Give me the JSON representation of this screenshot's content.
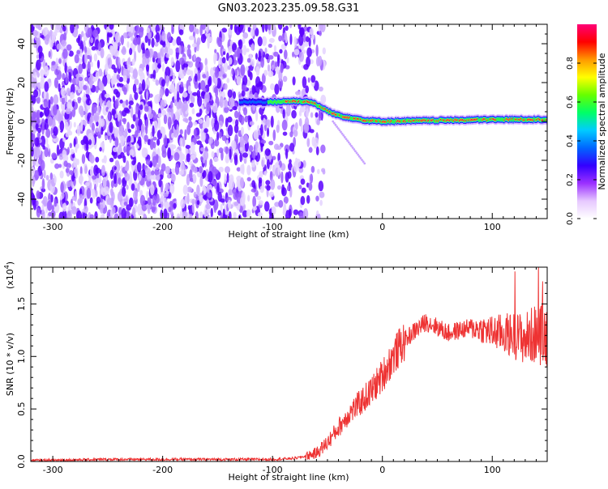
{
  "title": "GN03.2023.235.09.58.G31",
  "chart_data": [
    {
      "type": "heatmap",
      "xlabel": "Height of straight line (km)",
      "ylabel": "Frequency (Hz)",
      "xlim": [
        -320,
        150
      ],
      "ylim": [
        -50,
        50
      ],
      "x_ticks": [
        -300,
        -200,
        -100,
        0,
        100
      ],
      "y_ticks": [
        -40,
        -20,
        0,
        20,
        40
      ],
      "grid": false,
      "colorbar": {
        "label": "Normalized spectral amplitude",
        "range": [
          0,
          1
        ],
        "ticks": [
          "0.0",
          "0.2",
          "0.4",
          "0.6",
          "0.8"
        ],
        "colors": [
          "#ffffff",
          "#e6c8ff",
          "#9b30ff",
          "#3300ff",
          "#0066ff",
          "#00ccff",
          "#00ff66",
          "#66ff00",
          "#ffff00",
          "#ff9900",
          "#ff0000",
          "#ff0077"
        ]
      },
      "ridge": {
        "x": [
          -130,
          -100,
          -80,
          -65,
          -55,
          -45,
          -35,
          -25,
          -15,
          0,
          50,
          100,
          150
        ],
        "y": [
          10,
          10,
          10.5,
          10,
          7,
          4,
          2.5,
          1.5,
          0.5,
          0,
          0.5,
          1,
          1
        ]
      },
      "noise_region_x": [
        -320,
        -65
      ]
    },
    {
      "type": "line",
      "xlabel": "Height of straight line (km)",
      "ylabel": "SNR (10 * v/v)",
      "y_scale_note": "(x10",
      "y_scale_exp": "4",
      "xlim": [
        -320,
        150
      ],
      "ylim": [
        0,
        1.85
      ],
      "x_ticks": [
        -300,
        -200,
        -100,
        0,
        100
      ],
      "y_ticks": [
        "0.0",
        "0.5",
        "1.0",
        "1.5"
      ],
      "line_color": "#ee3333",
      "series": [
        {
          "x": [
            -320,
            -250,
            -200,
            -150,
            -100,
            -80,
            -70,
            -60,
            -50,
            -40,
            -30,
            -20,
            -10,
            0,
            10,
            20,
            30,
            40,
            50,
            60,
            70,
            80,
            90,
            100,
            110,
            120,
            130,
            140,
            150
          ],
          "y": [
            0.01,
            0.02,
            0.02,
            0.02,
            0.02,
            0.03,
            0.05,
            0.08,
            0.18,
            0.32,
            0.46,
            0.56,
            0.67,
            0.82,
            1.0,
            1.15,
            1.25,
            1.33,
            1.28,
            1.22,
            1.25,
            1.27,
            1.26,
            1.23,
            1.22,
            1.2,
            1.17,
            1.22,
            1.2
          ]
        }
      ]
    }
  ]
}
